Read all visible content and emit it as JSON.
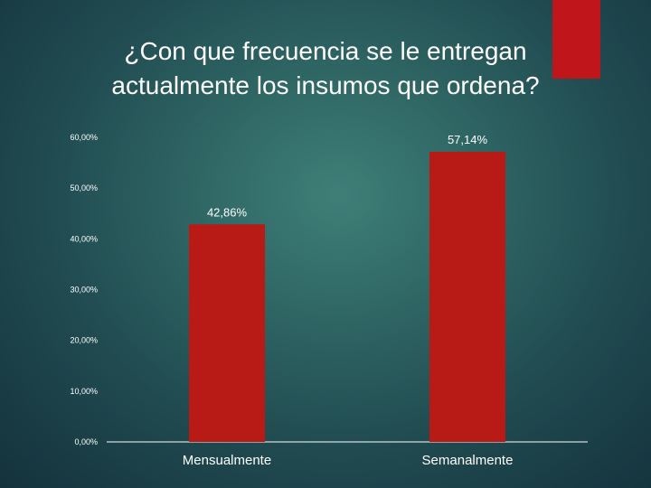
{
  "slide": {
    "accent_color": "#c0151a"
  },
  "chart_data": {
    "type": "bar",
    "title_lines": [
      "¿Con que frecuencia se le entregan",
      "actualmente los insumos que ordena?"
    ],
    "categories": [
      "Mensualmente",
      "Semanalmente"
    ],
    "values": [
      42.86,
      57.14
    ],
    "data_labels": [
      "42,86%",
      "57,14%"
    ],
    "ylim": [
      0,
      60
    ],
    "yticks": [
      0,
      10,
      20,
      30,
      40,
      50,
      60
    ],
    "ytick_labels": [
      "0,00%",
      "10,00%",
      "20,00%",
      "30,00%",
      "40,00%",
      "50,00%",
      "60,00%"
    ],
    "bar_color": "#b81a16",
    "grid": false,
    "legend": "none"
  }
}
